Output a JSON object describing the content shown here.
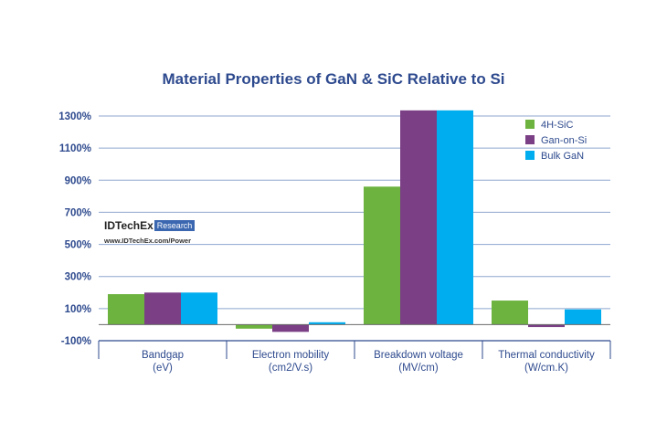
{
  "chart_data": {
    "type": "bar",
    "title": "Material Properties of GaN & SiC Relative to Si",
    "categories": [
      "Bandgap\n(eV)",
      "Electron mobility\n(cm2/V.s)",
      "Breakdown voltage\n(MV/cm)",
      "Thermal conductivity\n(W/cm.K)"
    ],
    "series": [
      {
        "name": "4H-SiC",
        "color": "#6cb33f",
        "values": [
          190,
          -25,
          860,
          150
        ]
      },
      {
        "name": "Gan-on-Si",
        "color": "#7b3f85",
        "values": [
          200,
          -45,
          1335,
          -15
        ]
      },
      {
        "name": "Bulk GaN",
        "color": "#00adee",
        "values": [
          200,
          15,
          1335,
          95
        ]
      }
    ],
    "yticks": [
      "-100%",
      "100%",
      "300%",
      "500%",
      "700%",
      "900%",
      "1100%",
      "1300%"
    ],
    "ylim": [
      -100,
      1300
    ],
    "grid": true,
    "legend": "top-right",
    "title_color": "#2e4a8e"
  },
  "watermark": {
    "brand": "IDTechEx",
    "tag": "Research",
    "url": "www.IDTechEx.com/Power"
  }
}
